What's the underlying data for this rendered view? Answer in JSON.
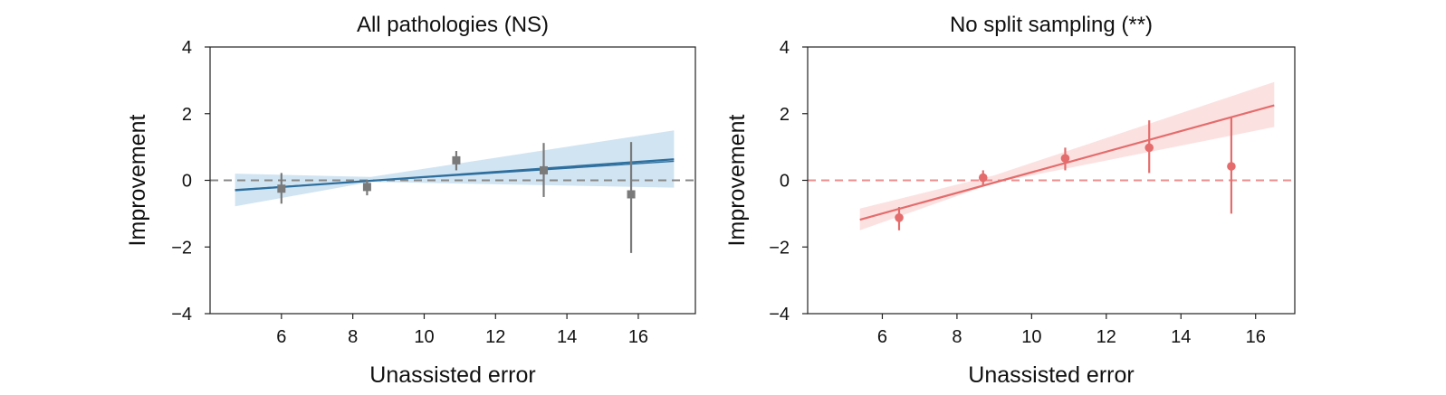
{
  "chart_data": [
    {
      "type": "scatter",
      "title": "All pathologies (NS)",
      "xlabel": "Unassisted error",
      "ylabel": "Improvement",
      "xlim": [
        4.0,
        17.6
      ],
      "ylim": [
        -4,
        4
      ],
      "xticks": [
        6,
        8,
        10,
        12,
        14,
        16
      ],
      "yticks": [
        -4,
        -2,
        0,
        2,
        4
      ],
      "x_tick_labels": [
        "6",
        "8",
        "10",
        "12",
        "14",
        "16"
      ],
      "y_tick_labels": [
        "−4",
        "−2",
        "0",
        "2",
        "4"
      ],
      "grid": false,
      "reference_line": {
        "y": 0,
        "style": "dashed",
        "color": "#888888"
      },
      "colors": {
        "points": "#7a7a7a",
        "fit": "#2e6f9e",
        "band": "#c9dff0"
      },
      "marker": "square",
      "points": [
        {
          "x": 6.0,
          "y": -0.25,
          "err_low": -0.7,
          "err_high": 0.22
        },
        {
          "x": 8.4,
          "y": -0.2,
          "err_low": -0.45,
          "err_high": 0.02
        },
        {
          "x": 10.9,
          "y": 0.6,
          "err_low": 0.3,
          "err_high": 0.88
        },
        {
          "x": 13.35,
          "y": 0.3,
          "err_low": -0.5,
          "err_high": 1.12
        },
        {
          "x": 15.8,
          "y": -0.42,
          "err_low": -2.18,
          "err_high": 1.15
        }
      ],
      "fit_lines": [
        {
          "x": [
            4.7,
            17.0
          ],
          "y": [
            -0.3,
            0.63
          ]
        },
        {
          "x": [
            4.7,
            17.0
          ],
          "y": [
            -0.28,
            0.57
          ]
        }
      ],
      "confidence_band": {
        "x": [
          4.7,
          8.5,
          17.0
        ],
        "lower": [
          -0.78,
          -0.05,
          -0.22
        ],
        "upper": [
          0.2,
          0.1,
          1.5
        ]
      }
    },
    {
      "type": "scatter",
      "title": "No split sampling (**)",
      "xlabel": "Unassisted error",
      "ylabel": "Improvement",
      "xlim": [
        4.0,
        17.05
      ],
      "ylim": [
        -4,
        4
      ],
      "xticks": [
        6,
        8,
        10,
        12,
        14,
        16
      ],
      "yticks": [
        -4,
        -2,
        0,
        2,
        4
      ],
      "x_tick_labels": [
        "6",
        "8",
        "10",
        "12",
        "14",
        "16"
      ],
      "y_tick_labels": [
        "−4",
        "−2",
        "0",
        "2",
        "4"
      ],
      "grid": false,
      "reference_line": {
        "y": 0,
        "style": "dashed",
        "color": "#ee8c8c"
      },
      "colors": {
        "points": "#e46c6c",
        "fit": "#e46c6c",
        "band": "#fbdcdc"
      },
      "marker": "circle",
      "points": [
        {
          "x": 6.45,
          "y": -1.12,
          "err_low": -1.5,
          "err_high": -0.8
        },
        {
          "x": 8.7,
          "y": 0.08,
          "err_low": -0.15,
          "err_high": 0.3
        },
        {
          "x": 10.9,
          "y": 0.66,
          "err_low": 0.3,
          "err_high": 0.98
        },
        {
          "x": 13.15,
          "y": 0.98,
          "err_low": 0.22,
          "err_high": 1.8
        },
        {
          "x": 15.35,
          "y": 0.42,
          "err_low": -1.0,
          "err_high": 1.9
        }
      ],
      "fit_lines": [
        {
          "x": [
            5.4,
            16.5
          ],
          "y": [
            -1.18,
            2.25
          ]
        }
      ],
      "confidence_band": {
        "x": [
          5.4,
          9.0,
          16.5
        ],
        "lower": [
          -1.5,
          -0.08,
          1.6
        ],
        "upper": [
          -0.85,
          0.15,
          2.95
        ]
      }
    }
  ]
}
